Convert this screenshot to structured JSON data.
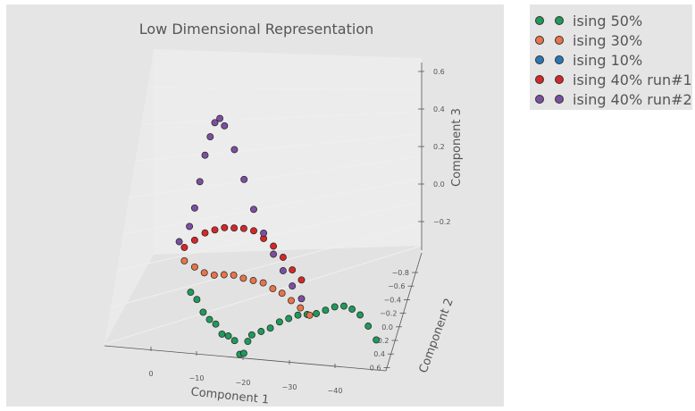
{
  "chart_data": {
    "type": "scatter3d",
    "title": "Low Dimensional Representation",
    "xlabel": "Component 1",
    "ylabel": "Component 2",
    "zlabel": "Component 3",
    "x_ticks": [
      "0",
      "−10",
      "−20",
      "−30",
      "−40"
    ],
    "y_ticks": [
      "−0.8",
      "−0.6",
      "−0.4",
      "−0.2",
      "0.0",
      "0.2",
      "0.4",
      "0.6"
    ],
    "z_ticks": [
      "0.6",
      "0.4",
      "0.2",
      "0.0",
      "−0.2"
    ],
    "legend_position": "outside top-right",
    "series": [
      {
        "name": "ising 50%",
        "color": "#1f9a5a",
        "points": [
          [
            -5,
            0.1,
            -0.38
          ],
          [
            -6,
            0.15,
            -0.42
          ],
          [
            -7,
            0.2,
            -0.48
          ],
          [
            -8,
            0.25,
            -0.52
          ],
          [
            -9,
            0.3,
            -0.55
          ],
          [
            -10,
            0.35,
            -0.6
          ],
          [
            -11,
            0.4,
            -0.62
          ],
          [
            -12,
            0.45,
            -0.65
          ],
          [
            -13,
            0.45,
            -0.7
          ],
          [
            -14,
            0.4,
            -0.68
          ],
          [
            -15,
            0.35,
            -0.62
          ],
          [
            -16,
            0.3,
            -0.58
          ],
          [
            -18,
            0.25,
            -0.55
          ],
          [
            -20,
            0.2,
            -0.52
          ],
          [
            -22,
            0.15,
            -0.48
          ],
          [
            -24,
            0.1,
            -0.45
          ],
          [
            -26,
            0.05,
            -0.42
          ],
          [
            -28,
            0.0,
            -0.4
          ],
          [
            -30,
            -0.05,
            -0.38
          ],
          [
            -32,
            -0.1,
            -0.35
          ],
          [
            -34,
            -0.15,
            -0.32
          ],
          [
            -36,
            -0.2,
            -0.3
          ],
          [
            -38,
            -0.3,
            -0.28
          ],
          [
            -40,
            -0.4,
            -0.27
          ],
          [
            -42,
            -0.5,
            -0.28
          ],
          [
            -44,
            -0.6,
            -0.3
          ]
        ]
      },
      {
        "name": "ising 30%",
        "color": "#e8744a",
        "points": [
          [
            -4,
            0.05,
            -0.25
          ],
          [
            -6,
            0.05,
            -0.27
          ],
          [
            -8,
            0.02,
            -0.28
          ],
          [
            -10,
            0.0,
            -0.28
          ],
          [
            -12,
            -0.02,
            -0.27
          ],
          [
            -14,
            -0.05,
            -0.26
          ],
          [
            -16,
            -0.08,
            -0.26
          ],
          [
            -18,
            -0.1,
            -0.26
          ],
          [
            -20,
            -0.12,
            -0.26
          ],
          [
            -22,
            -0.15,
            -0.27
          ],
          [
            -24,
            -0.2,
            -0.27
          ],
          [
            -26,
            -0.25,
            -0.28
          ],
          [
            -28,
            -0.3,
            -0.29
          ],
          [
            -30,
            -0.35,
            -0.3
          ]
        ]
      },
      {
        "name": "ising 10%",
        "color": "#2878b8",
        "points": []
      },
      {
        "name": "ising 40% run#1",
        "color": "#d62728",
        "points": [
          [
            -4,
            0.05,
            -0.2
          ],
          [
            -6,
            0.05,
            -0.17
          ],
          [
            -8,
            0.05,
            -0.14
          ],
          [
            -10,
            0.03,
            -0.12
          ],
          [
            -12,
            0.0,
            -0.1
          ],
          [
            -14,
            -0.03,
            -0.09
          ],
          [
            -16,
            -0.06,
            -0.08
          ],
          [
            -18,
            -0.08,
            -0.08
          ],
          [
            -20,
            -0.1,
            -0.1
          ],
          [
            -22,
            -0.12,
            -0.12
          ],
          [
            -24,
            -0.15,
            -0.15
          ],
          [
            -26,
            -0.2,
            -0.18
          ],
          [
            -28,
            -0.25,
            -0.2
          ]
        ]
      },
      {
        "name": "ising 40% run#2",
        "color": "#7b4fa0",
        "points": [
          [
            -3,
            0.05,
            -0.18
          ],
          [
            -5,
            0.05,
            -0.12
          ],
          [
            -6,
            0.05,
            -0.05
          ],
          [
            -7,
            0.05,
            0.05
          ],
          [
            -8,
            0.05,
            0.15
          ],
          [
            -9,
            0.05,
            0.22
          ],
          [
            -10,
            0.03,
            0.28
          ],
          [
            -11,
            0.02,
            0.3
          ],
          [
            -12,
            0.0,
            0.28
          ],
          [
            -14,
            -0.02,
            0.2
          ],
          [
            -16,
            -0.05,
            0.1
          ],
          [
            -18,
            -0.08,
            0.0
          ],
          [
            -20,
            -0.1,
            -0.08
          ],
          [
            -22,
            -0.12,
            -0.15
          ],
          [
            -24,
            -0.15,
            -0.2
          ],
          [
            -26,
            -0.2,
            -0.24
          ],
          [
            -28,
            -0.25,
            -0.27
          ]
        ]
      }
    ]
  }
}
